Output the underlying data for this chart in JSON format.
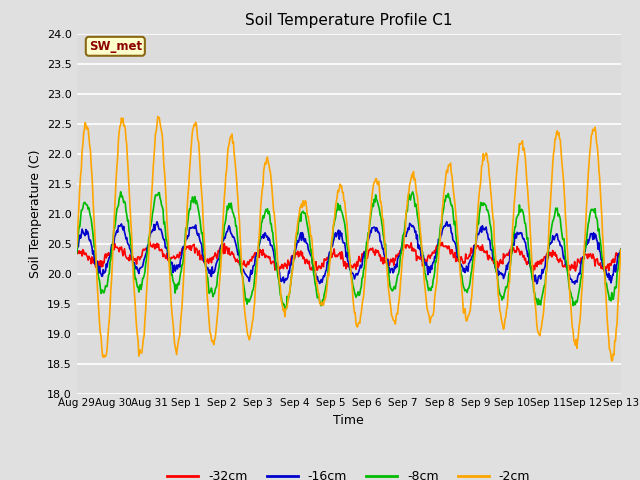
{
  "title": "Soil Temperature Profile C1",
  "xlabel": "Time",
  "ylabel": "Soil Temperature (C)",
  "ylim": [
    18.0,
    24.0
  ],
  "yticks": [
    18.0,
    18.5,
    19.0,
    19.5,
    20.0,
    20.5,
    21.0,
    21.5,
    22.0,
    22.5,
    23.0,
    23.5,
    24.0
  ],
  "xtick_labels": [
    "Aug 29",
    "Aug 30",
    "Aug 31",
    "Sep 1",
    "Sep 2",
    "Sep 3",
    "Sep 4",
    "Sep 5",
    "Sep 6",
    "Sep 7",
    "Sep 8",
    "Sep 9",
    "Sep 10",
    "Sep 11",
    "Sep 12",
    "Sep 13"
  ],
  "annotation_text": "SW_met",
  "annotation_color": "#8B0000",
  "annotation_bg": "#FFFFCC",
  "annotation_border": "#8B6914",
  "colors": {
    "-32cm": "#FF0000",
    "-16cm": "#0000CD",
    "-8cm": "#00BB00",
    "-2cm": "#FFA500"
  },
  "bg_color": "#E0E0E0",
  "plot_bg": "#DCDCDC",
  "n_days": 15,
  "samples_per_day": 48
}
